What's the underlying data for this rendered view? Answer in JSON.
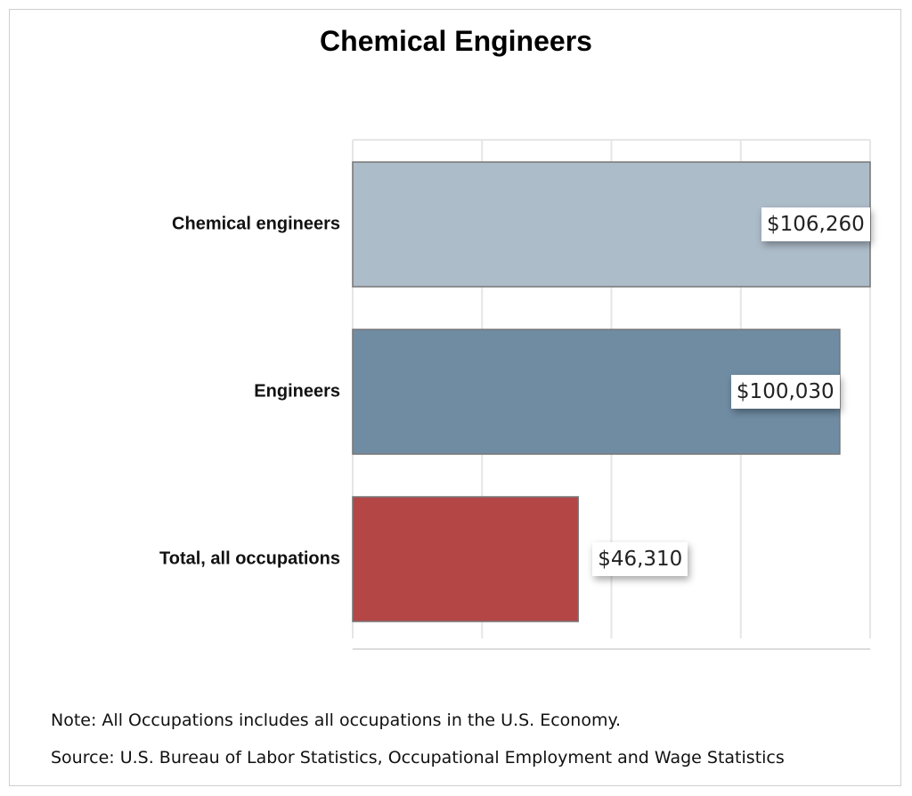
{
  "chart_data": {
    "type": "bar",
    "orientation": "horizontal",
    "title": "Chemical Engineers",
    "categories": [
      "Chemical engineers",
      "Engineers",
      "Total, all occupations"
    ],
    "values": [
      106260,
      100030,
      46310
    ],
    "data_labels": [
      "$106,260",
      "$100,030",
      "$46,310"
    ],
    "colors": [
      "#adbcc9",
      "#708ca3",
      "#b44646"
    ],
    "xlabel": "",
    "ylabel": "",
    "xlim": [
      0,
      106260
    ],
    "grid": true,
    "legend": "none"
  },
  "notes": {
    "note": "Note: All Occupations includes all occupations in the U.S. Economy.",
    "source": "Source: U.S. Bureau of Labor Statistics, Occupational Employment and Wage Statistics"
  }
}
